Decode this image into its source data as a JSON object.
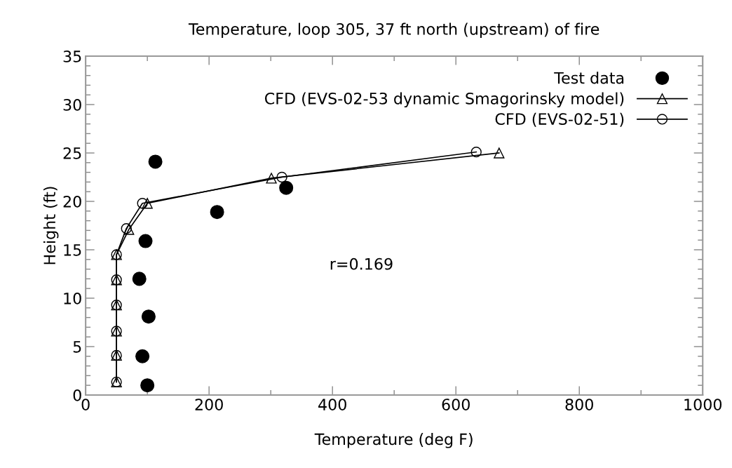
{
  "chart_data": {
    "type": "scatter",
    "title": "Temperature, loop 305, 37 ft north (upstream) of fire",
    "xlabel": "Temperature (deg F)",
    "ylabel": "Height (ft)",
    "xlim": [
      0,
      1000
    ],
    "ylim": [
      0,
      35
    ],
    "xticks": [
      0,
      {
        "value": 100,
        "label": null
      },
      200,
      {
        "value": 300,
        "label": null
      },
      400,
      {
        "value": 500,
        "label": null
      },
      600,
      {
        "value": 700,
        "label": null
      },
      800,
      {
        "value": 900,
        "label": null
      },
      1000
    ],
    "yticks": [
      0,
      {
        "value": 1,
        "label": null
      },
      {
        "value": 2,
        "label": null
      },
      {
        "value": 3,
        "label": null
      },
      {
        "value": 4,
        "label": null
      },
      5,
      {
        "value": 6,
        "label": null
      },
      {
        "value": 7,
        "label": null
      },
      {
        "value": 8,
        "label": null
      },
      {
        "value": 9,
        "label": null
      },
      10,
      {
        "value": 11,
        "label": null
      },
      {
        "value": 12,
        "label": null
      },
      {
        "value": 13,
        "label": null
      },
      {
        "value": 14,
        "label": null
      },
      15,
      {
        "value": 16,
        "label": null
      },
      {
        "value": 17,
        "label": null
      },
      {
        "value": 18,
        "label": null
      },
      {
        "value": 19,
        "label": null
      },
      20,
      {
        "value": 21,
        "label": null
      },
      {
        "value": 22,
        "label": null
      },
      {
        "value": 23,
        "label": null
      },
      {
        "value": 24,
        "label": null
      },
      25,
      {
        "value": 26,
        "label": null
      },
      {
        "value": 27,
        "label": null
      },
      {
        "value": 28,
        "label": null
      },
      {
        "value": 29,
        "label": null
      },
      30,
      {
        "value": 31,
        "label": null
      },
      {
        "value": 32,
        "label": null
      },
      {
        "value": 33,
        "label": null
      },
      {
        "value": 34,
        "label": null
      },
      35
    ],
    "grid": false,
    "legend": "top right",
    "annotations": [
      "r=0.169"
    ],
    "series": [
      {
        "name": "Test data",
        "marker": "circle",
        "color": "#000000",
        "x": [
          113,
          325,
          213,
          97,
          87,
          102,
          92,
          100
        ],
        "values": [
          24.1,
          21.4,
          18.9,
          15.9,
          12.0,
          8.1,
          4.0,
          1.0
        ]
      },
      {
        "name": "CFD (EVS-02-53 dynamic Smagorinsky model)",
        "type": "line",
        "marker": "triangle",
        "line_style": "solid",
        "color": "#000000",
        "x": [
          50,
          50,
          50,
          50,
          50,
          50,
          70,
          100,
          301,
          670
        ],
        "values": [
          1.35,
          4.1,
          6.6,
          9.3,
          11.9,
          14.5,
          17.1,
          19.8,
          22.4,
          25.0
        ]
      },
      {
        "name": "CFD (EVS-02-51)",
        "type": "line",
        "marker": "circle",
        "line_style": "solid",
        "color": "#000000",
        "x": [
          50,
          50,
          50,
          50,
          50,
          50,
          66,
          92,
          318,
          633
        ],
        "values": [
          1.35,
          4.1,
          6.6,
          9.3,
          11.9,
          14.5,
          17.2,
          19.8,
          22.5,
          25.1
        ]
      }
    ]
  }
}
